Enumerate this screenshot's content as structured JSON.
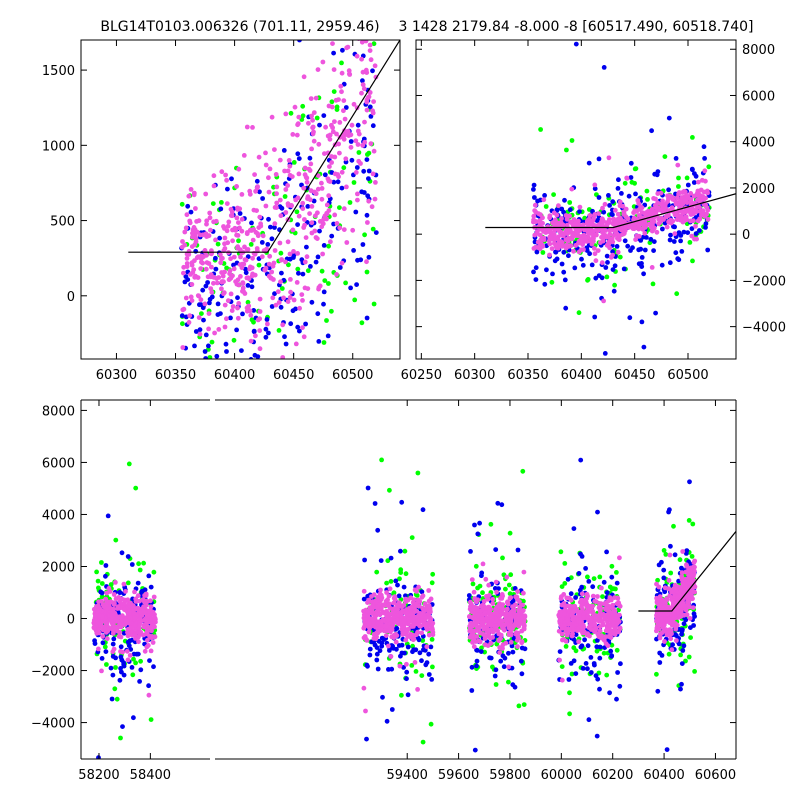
{
  "colors": {
    "green": "#00ff00",
    "blue": "#0000ee",
    "magenta": "#ee55dd",
    "fit_line": "#000000",
    "axes": "#000000"
  },
  "chart_data": [
    {
      "panel": "top-left",
      "type": "scatter",
      "title": "BLG14T0103.006326 (701.11, 2959.46)",
      "xlim": [
        60270,
        60540
      ],
      "ylim": [
        -420,
        1700
      ],
      "x_ticks": [
        60300,
        60350,
        60400,
        60450,
        60500
      ],
      "y_ticks": [
        0,
        500,
        1000,
        1500
      ],
      "y_axis_side": "left",
      "cluster": {
        "x_range": [
          60355,
          60520
        ]
      },
      "series": [
        {
          "color": "green",
          "count": 120
        },
        {
          "color": "blue",
          "count": 260
        },
        {
          "color": "magenta",
          "count": 560
        }
      ],
      "fit_line": [
        [
          60310,
          290
        ],
        [
          60428,
          290
        ],
        [
          60540,
          1700
        ]
      ]
    },
    {
      "panel": "top-right",
      "type": "scatter",
      "title": "3 1428 2179.84 -8.000 -8 [60517.490, 60518.740]",
      "xlim": [
        60245,
        60545
      ],
      "ylim": [
        -5400,
        8400
      ],
      "x_ticks": [
        60250,
        60300,
        60350,
        60400,
        60450,
        60500
      ],
      "y_ticks": [
        -4000,
        -2000,
        0,
        2000,
        4000,
        6000,
        8000
      ],
      "y_axis_side": "right",
      "cluster": {
        "x_range": [
          60355,
          60520
        ]
      },
      "series": [
        {
          "color": "green",
          "count": 140
        },
        {
          "color": "blue",
          "count": 300
        },
        {
          "color": "magenta",
          "count": 600
        }
      ],
      "fit_line": [
        [
          60310,
          290
        ],
        [
          60430,
          290
        ],
        [
          60545,
          1750
        ]
      ]
    },
    {
      "panel": "bottom",
      "type": "scatter",
      "title": "",
      "xlim": [
        58130,
        60680
      ],
      "ylim": [
        -5400,
        8400
      ],
      "x_ticks": [
        58200,
        58400,
        59400,
        59600,
        59800,
        60000,
        60200,
        60400,
        60600
      ],
      "y_ticks": [
        -4000,
        -2000,
        0,
        2000,
        4000,
        6000,
        8000
      ],
      "y_axis_side": "left",
      "clusters": [
        {
          "x_range": [
            58180,
            58420
          ]
        },
        {
          "x_range": [
            59230,
            59500
          ]
        },
        {
          "x_range": [
            59640,
            59860
          ]
        },
        {
          "x_range": [
            59990,
            60230
          ]
        },
        {
          "x_range": [
            60370,
            60520
          ]
        }
      ],
      "series": [
        {
          "color": "green",
          "count": 500
        },
        {
          "color": "blue",
          "count": 700
        },
        {
          "color": "magenta",
          "count": 1800
        }
      ],
      "fit_line": [
        [
          60300,
          290
        ],
        [
          60430,
          290
        ],
        [
          60680,
          3350
        ]
      ]
    }
  ]
}
